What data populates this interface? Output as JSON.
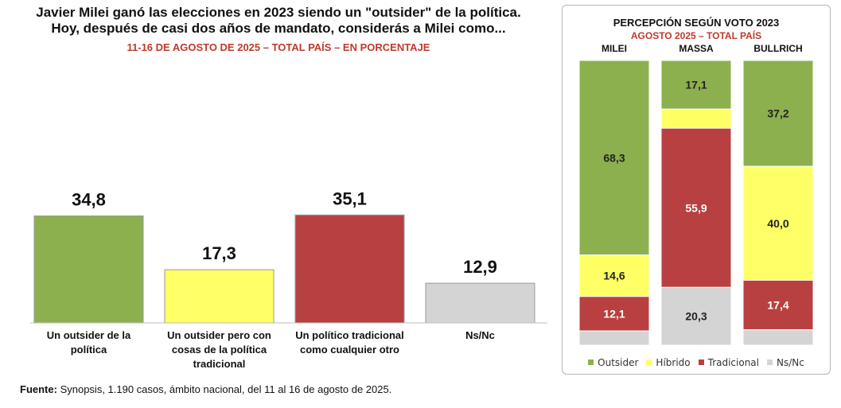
{
  "left": {
    "title_line1": "Javier Milei ganó las elecciones en 2023 siendo un \"outsider\" de la política.",
    "title_line2": "Hoy, después de casi dos años de mandato, considerás a Milei como...",
    "subtitle": "11-16 DE AGOSTO DE 2025 – TOTAL PAÍS – EN PORCENTAJE"
  },
  "right": {
    "title": "PERCEPCIÓN SEGÚN VOTO 2023",
    "subtitle": "AGOSTO 2025 – TOTAL PAÍS"
  },
  "legend": [
    {
      "label": "Outsider",
      "color": "#8db04f"
    },
    {
      "label": "Híbrido",
      "color": "#ffff66"
    },
    {
      "label": "Tradicional",
      "color": "#b94040"
    },
    {
      "label": "Ns/Nc",
      "color": "#d4d4d4"
    }
  ],
  "source": {
    "label": "Fuente:",
    "text": " Synopsis, 1.190 casos, ámbito nacional, del 11 al 16 de agosto de 2025."
  },
  "chart_data": [
    {
      "type": "bar",
      "title": "Javier Milei ganó las elecciones en 2023 siendo un \"outsider\" de la política. Hoy, después de casi dos años de mandato, considerás a Milei como...",
      "subtitle": "11-16 DE AGOSTO DE 2025 – TOTAL PAÍS – EN PORCENTAJE",
      "categories": [
        [
          "Un outsider de la",
          "política"
        ],
        [
          "Un outsider pero con",
          "cosas de la política",
          "tradicional"
        ],
        [
          "Un político tradicional",
          "como cualquier otro"
        ],
        [
          "Ns/Nc"
        ]
      ],
      "values": [
        34.8,
        17.3,
        35.1,
        12.9
      ],
      "value_labels": [
        "34,8",
        "17,3",
        "35,1",
        "12,9"
      ],
      "colors": [
        "#8db04f",
        "#ffff66",
        "#b94040",
        "#d4d4d4"
      ],
      "ylim": [
        0,
        38.8
      ],
      "grid": false
    },
    {
      "type": "bar",
      "stacked": true,
      "title": "PERCEPCIÓN SEGÚN VOTO 2023",
      "subtitle": "AGOSTO 2025 – TOTAL PAÍS",
      "categories": [
        "MILEI",
        "MASSA",
        "BULLRICH"
      ],
      "series": [
        {
          "name": "Outsider",
          "color": "#8db04f",
          "values": [
            68.3,
            17.1,
            37.2
          ],
          "labels": [
            "68,3",
            "17,1",
            "37,2"
          ]
        },
        {
          "name": "Híbrido",
          "color": "#ffff66",
          "values": [
            14.6,
            6.7,
            40.0
          ],
          "labels": [
            "14,6",
            "",
            "40,0"
          ]
        },
        {
          "name": "Tradicional",
          "color": "#b94040",
          "values": [
            12.1,
            55.9,
            17.4
          ],
          "labels": [
            "12,1",
            "55,9",
            "17,4"
          ]
        },
        {
          "name": "Ns/Nc",
          "color": "#d4d4d4",
          "values": [
            5.0,
            20.3,
            5.4
          ],
          "labels": [
            "",
            "20,3",
            ""
          ]
        }
      ],
      "ylim": [
        0,
        100
      ],
      "legend": "bottom"
    }
  ]
}
